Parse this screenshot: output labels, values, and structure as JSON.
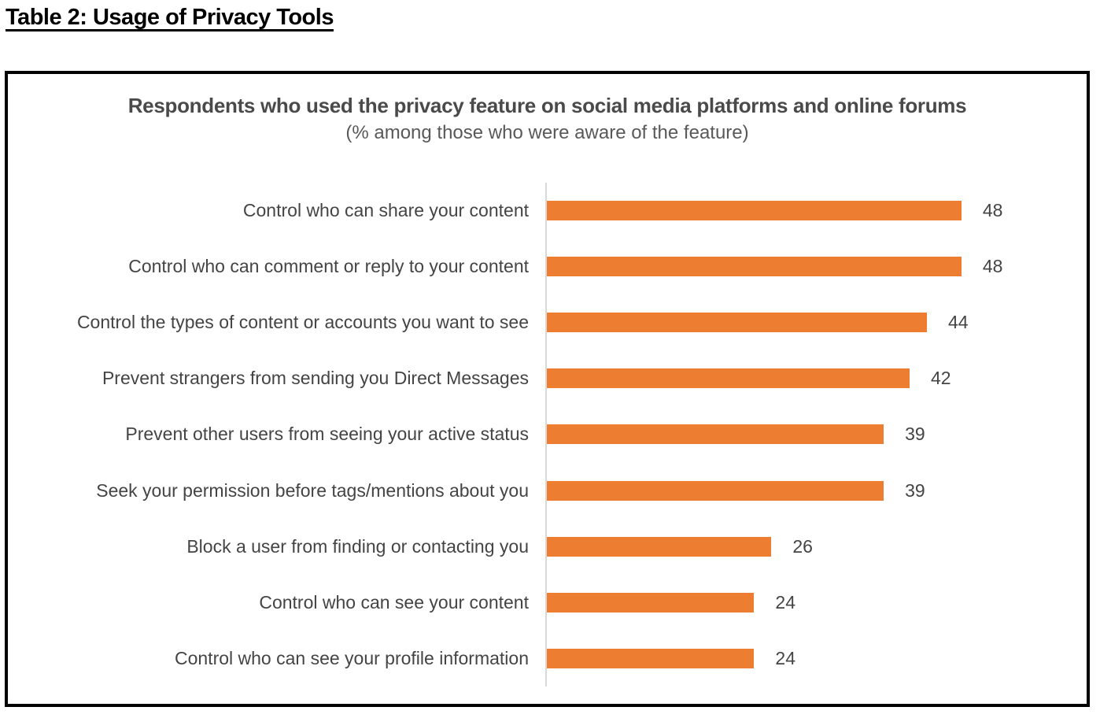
{
  "page_title": "Table 2: Usage of Privacy Tools",
  "chart_data": {
    "type": "bar",
    "orientation": "horizontal",
    "title": "Respondents who used the privacy feature on social media platforms and online forums",
    "subtitle": "(% among those who were aware of the feature)",
    "categories": [
      "Control who can share your content",
      "Control who can comment or reply to your content",
      "Control the types of content or accounts you want to see",
      "Prevent strangers from sending you Direct Messages",
      "Prevent other users from seeing your active status",
      "Seek your permission before tags/mentions about you",
      "Block a user from finding or contacting you",
      "Control who can see your content",
      "Control who can see your profile information"
    ],
    "values": [
      48,
      48,
      44,
      42,
      39,
      39,
      26,
      24,
      24
    ],
    "xlabel": "",
    "ylabel": "",
    "xlim": [
      0,
      62.5
    ],
    "grid": false,
    "legend": "none",
    "value_labels_shown": true,
    "colors": {
      "bar": "#ED7D31",
      "axis_line": "#D9D9D9",
      "category_text": "#444444",
      "title_text": "#4A4A4A",
      "subtitle_text": "#595959",
      "box_border": "#000000"
    }
  }
}
